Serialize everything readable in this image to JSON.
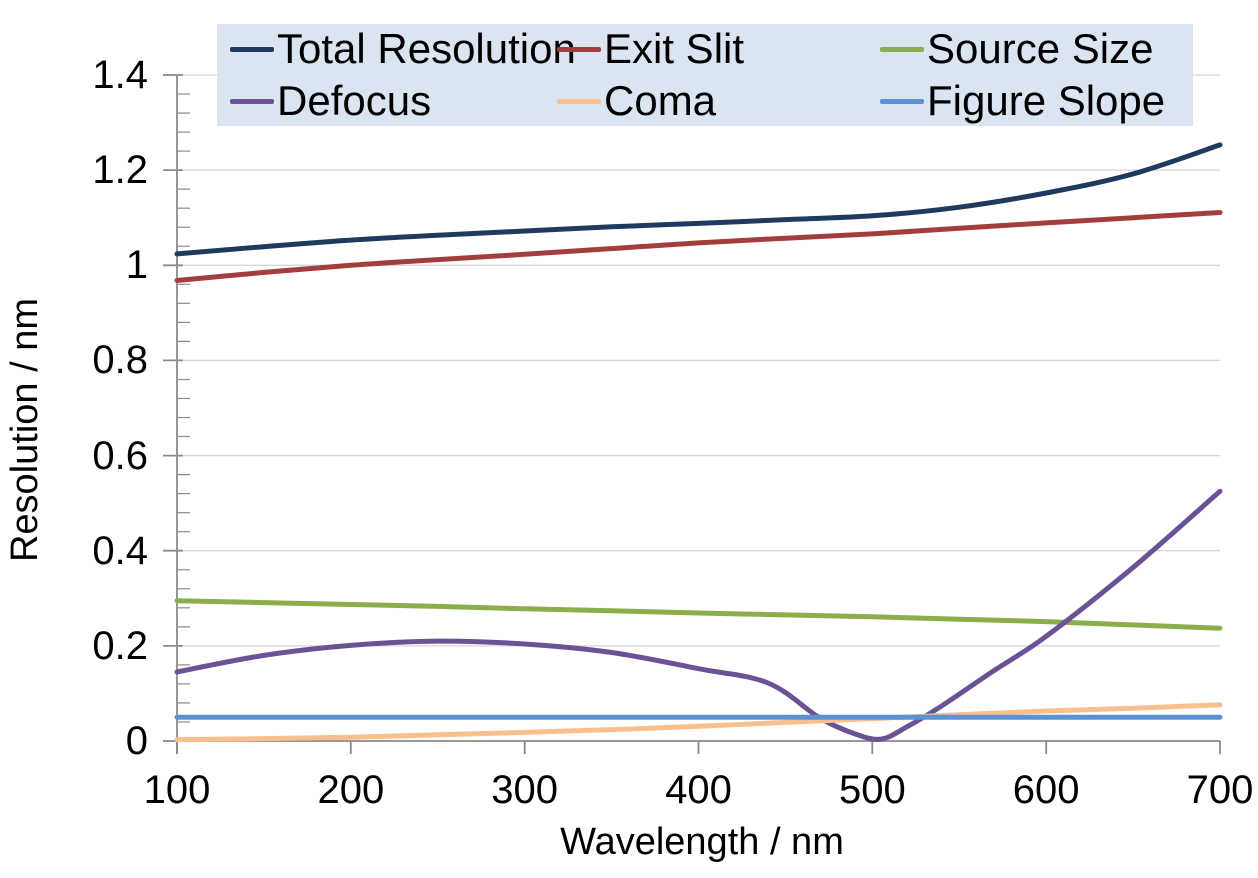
{
  "chart_data": {
    "type": "line",
    "title": "",
    "xlabel": "Wavelength / nm",
    "ylabel": "Resolution / nm",
    "xlim": [
      100,
      700
    ],
    "ylim": [
      0,
      1.4
    ],
    "x_tick_labels": [
      "100",
      "200",
      "300",
      "400",
      "500",
      "600",
      "700"
    ],
    "x_tick_values": [
      100,
      200,
      300,
      400,
      500,
      600,
      700
    ],
    "y_tick_labels": [
      "0",
      "0.2",
      "0.4",
      "0.6",
      "0.8",
      "1",
      "1.2",
      "1.4"
    ],
    "y_tick_values": [
      0,
      0.2,
      0.4,
      0.6,
      0.8,
      1.0,
      1.2,
      1.4
    ],
    "y_minor_step": 0.04,
    "grid": "horizontal-major",
    "legend_position": "top",
    "x": [
      100,
      150,
      200,
      250,
      300,
      350,
      400,
      450,
      500,
      550,
      600,
      650,
      700
    ],
    "series": [
      {
        "name": "Total Resolution",
        "color": "#1F3A5F",
        "values": [
          1.024,
          1.039,
          1.053,
          1.063,
          1.072,
          1.081,
          1.088,
          1.096,
          1.104,
          1.122,
          1.152,
          1.192,
          1.253
        ]
      },
      {
        "name": "Exit Slit",
        "color": "#A43E3C",
        "values": [
          0.968,
          0.985,
          1.0,
          1.012,
          1.023,
          1.035,
          1.047,
          1.057,
          1.066,
          1.078,
          1.089,
          1.1,
          1.111
        ]
      },
      {
        "name": "Source Size",
        "color": "#8BAD4B",
        "values": [
          0.295,
          0.291,
          0.287,
          0.283,
          0.278,
          0.274,
          0.269,
          0.265,
          0.261,
          0.256,
          0.251,
          0.244,
          0.237
        ]
      },
      {
        "name": "Defocus",
        "color": "#6B5295",
        "x": [
          100,
          150,
          200,
          250,
          300,
          350,
          400,
          440,
          470,
          490,
          505,
          520,
          540,
          570,
          600,
          650,
          700
        ],
        "values": [
          0.145,
          0.18,
          0.201,
          0.21,
          0.204,
          0.186,
          0.152,
          0.122,
          0.048,
          0.015,
          0.004,
          0.03,
          0.074,
          0.148,
          0.22,
          0.365,
          0.525
        ]
      },
      {
        "name": "Coma",
        "color": "#F9C08E",
        "values": [
          0.003,
          0.005,
          0.008,
          0.013,
          0.018,
          0.024,
          0.031,
          0.039,
          0.047,
          0.055,
          0.063,
          0.069,
          0.076
        ]
      },
      {
        "name": "Figure Slope",
        "color": "#5B91D5",
        "values": [
          0.05,
          0.05,
          0.05,
          0.05,
          0.05,
          0.05,
          0.05,
          0.05,
          0.05,
          0.05,
          0.05,
          0.05,
          0.05
        ]
      }
    ]
  },
  "colors": {
    "legend_bg": "#DBE5F1",
    "gridline": "#D5D5D5",
    "axis": "#8A8A8A",
    "text": "#000000"
  }
}
